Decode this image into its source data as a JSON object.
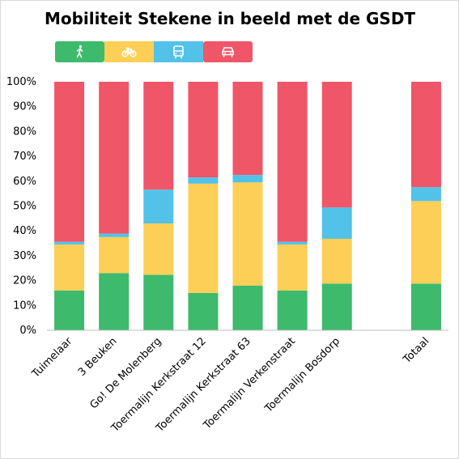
{
  "chart_data": {
    "type": "bar",
    "stacked": true,
    "title": "Mobiliteit Stekene in beeld met de GSDT",
    "xlabel": "",
    "ylabel": "",
    "ylim": [
      0,
      100
    ],
    "y_ticks": [
      "0%",
      "10%",
      "20%",
      "30%",
      "40%",
      "50%",
      "60%",
      "70%",
      "80%",
      "90%",
      "100%"
    ],
    "categories": [
      "Tuimelaar",
      "3 Beuken",
      "Go! De Molenberg",
      "Toermalijn Kerkstraat 12",
      "Toermalijn Kerkstraat 63",
      "Toermalijn Verkenstraat",
      "Toermalijn Bosdorp",
      "",
      "Totaal"
    ],
    "series": [
      {
        "icon": "walking-icon",
        "color": "#3dba6b",
        "values": [
          16,
          23,
          22.3,
          15,
          18,
          16,
          18.8,
          null,
          18.8
        ]
      },
      {
        "icon": "bicycle-icon",
        "color": "#fecf57",
        "values": [
          18.5,
          14.5,
          20.7,
          44,
          41.5,
          18.5,
          18,
          null,
          33.2
        ]
      },
      {
        "icon": "bus-icon",
        "color": "#52c2e8",
        "values": [
          1.1,
          1.4,
          13.6,
          2.5,
          3,
          1.1,
          12.6,
          null,
          5.6
        ]
      },
      {
        "icon": "car-icon",
        "color": "#ef5668",
        "values": [
          64.4,
          61.1,
          43.4,
          38.5,
          37.5,
          64.4,
          50.6,
          null,
          42.4
        ]
      }
    ],
    "grid": false,
    "legend_position": "top-left"
  }
}
